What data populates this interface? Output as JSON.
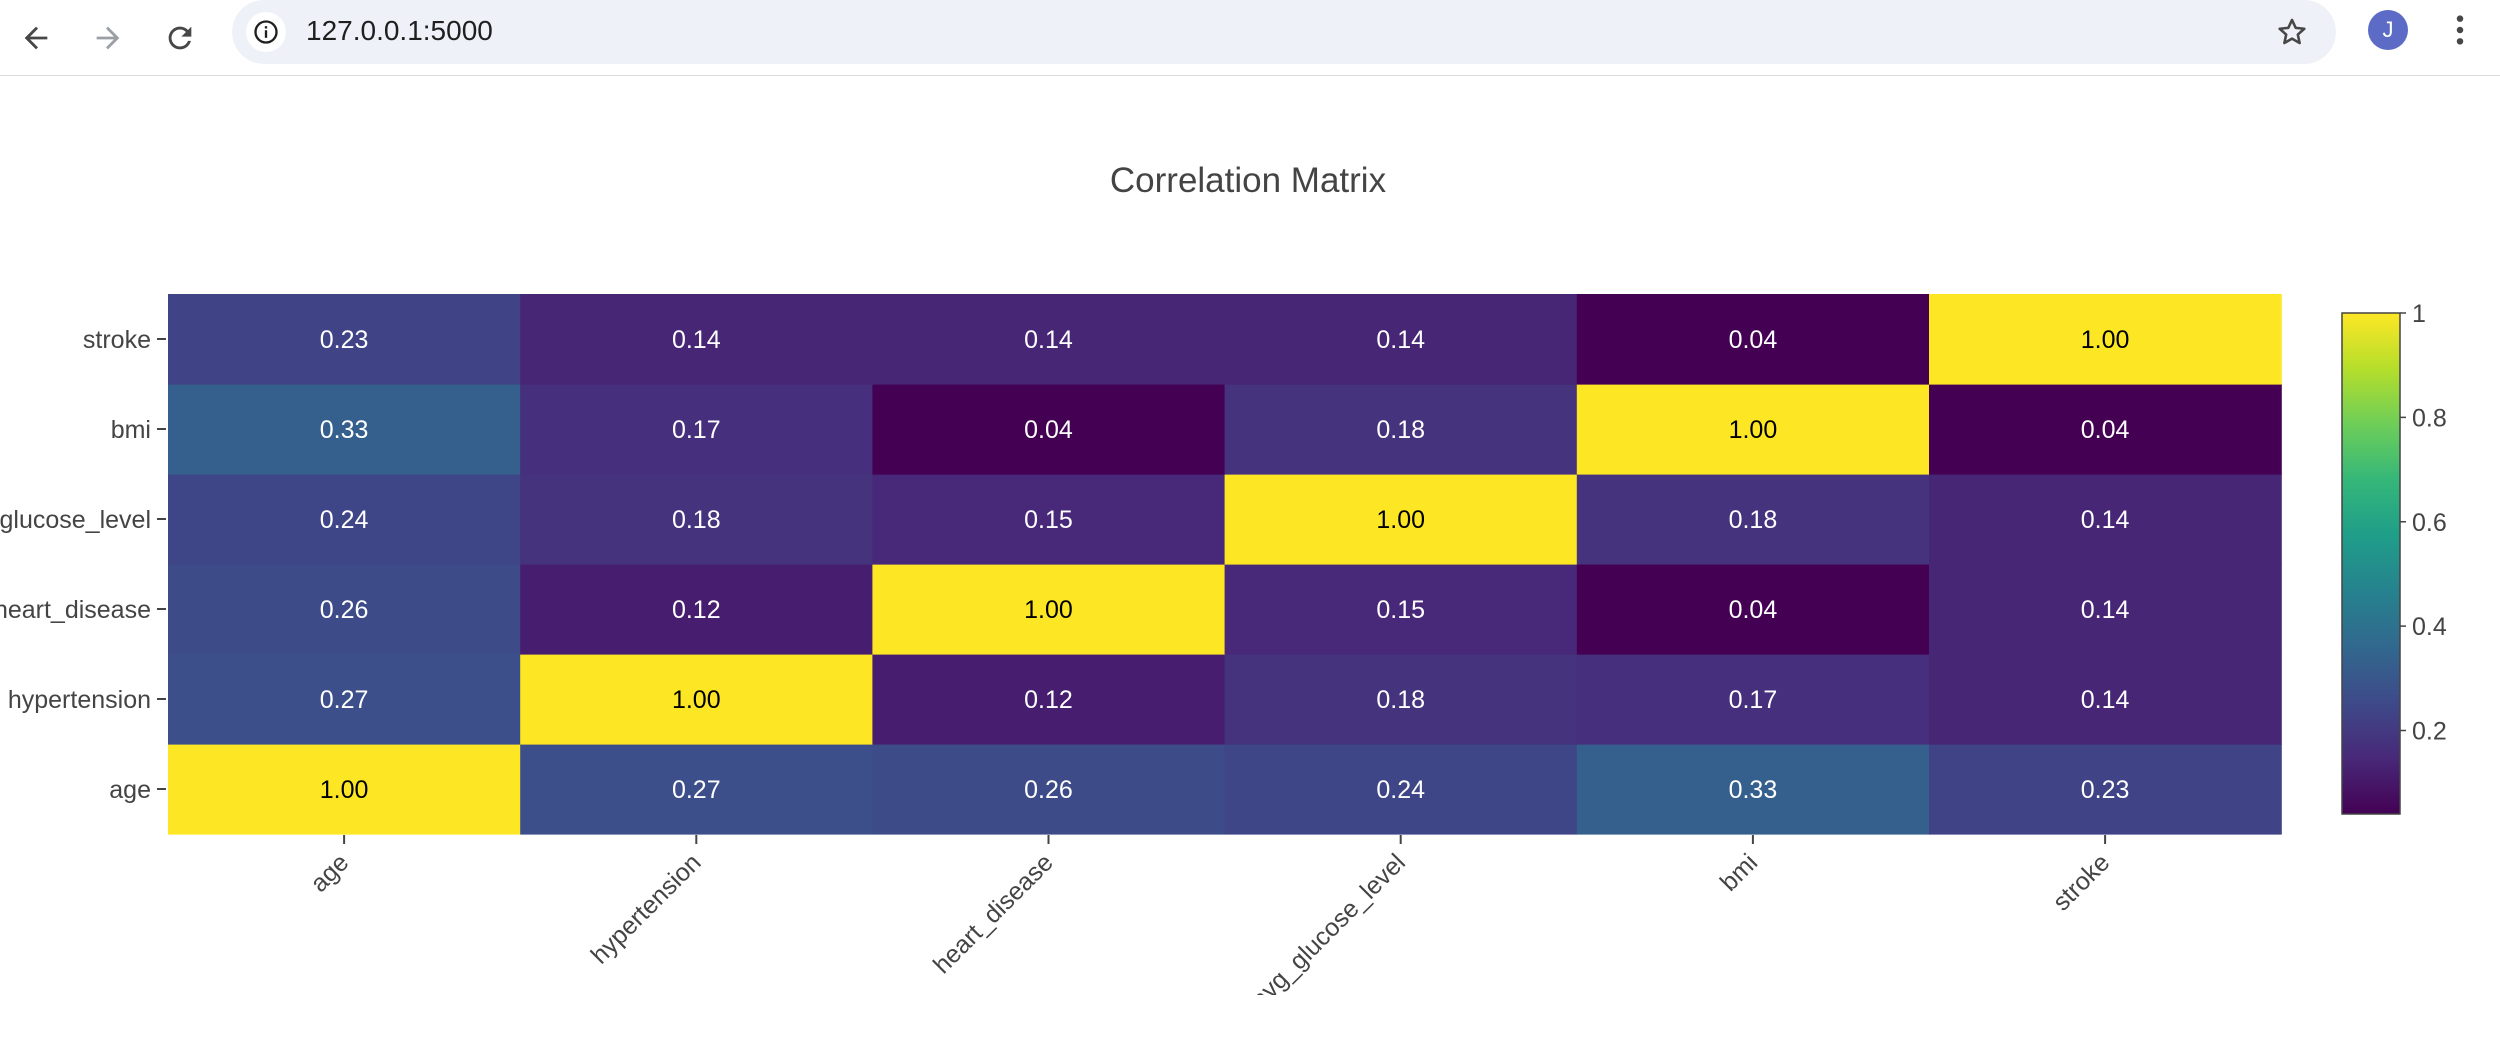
{
  "browser": {
    "url": "127.0.0.1:5000",
    "avatar_letter": "J",
    "icons": [
      "back-arrow-icon",
      "forward-arrow-icon",
      "reload-icon",
      "site-info-icon",
      "bookmark-star-icon",
      "kebab-menu-icon"
    ]
  },
  "chart_data": {
    "type": "heatmap",
    "title": "Correlation Matrix",
    "x_categories": [
      "age",
      "hypertension",
      "heart_disease",
      "avg_glucose_level",
      "bmi",
      "stroke"
    ],
    "y_categories": [
      "age",
      "hypertension",
      "heart_disease",
      "avg_glucose_level",
      "bmi",
      "stroke"
    ],
    "z": [
      [
        1.0,
        0.27,
        0.26,
        0.24,
        0.33,
        0.23
      ],
      [
        0.27,
        1.0,
        0.12,
        0.18,
        0.17,
        0.14
      ],
      [
        0.26,
        0.12,
        1.0,
        0.15,
        0.04,
        0.14
      ],
      [
        0.24,
        0.18,
        0.15,
        1.0,
        0.18,
        0.14
      ],
      [
        0.33,
        0.17,
        0.04,
        0.18,
        1.0,
        0.04
      ],
      [
        0.23,
        0.14,
        0.14,
        0.14,
        0.04,
        1.0
      ]
    ],
    "text_format": "0.00",
    "colorscale": "Viridis",
    "zmin": 0.04,
    "zmax": 1.0,
    "colorbar_ticks": [
      0.2,
      0.4,
      0.6,
      0.8,
      1
    ],
    "colorbar_tick_labels": [
      "0.2",
      "0.4",
      "0.6",
      "0.8",
      "1"
    ]
  }
}
